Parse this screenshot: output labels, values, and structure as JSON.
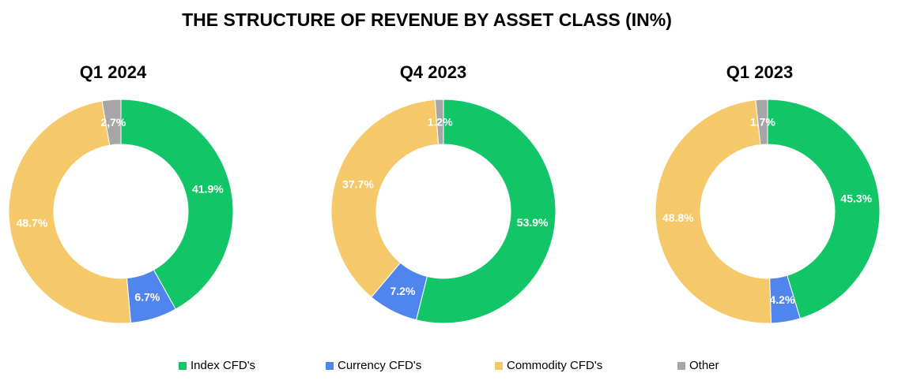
{
  "title": "THE STRUCTURE OF REVENUE BY ASSET CLASS (IN%)",
  "legend": [
    {
      "label": "Index CFD's",
      "color": "#12c667"
    },
    {
      "label": "Currency CFD's",
      "color": "#5185ee"
    },
    {
      "label": "Commodity CFD's",
      "color": "#f5c96a"
    },
    {
      "label": "Other",
      "color": "#a6a6a6"
    }
  ],
  "chart_data": [
    {
      "type": "pie",
      "title": "Q1 2024",
      "categories": [
        "Index CFD's",
        "Currency CFD's",
        "Commodity CFD's",
        "Other"
      ],
      "values": [
        41.9,
        6.7,
        48.7,
        2.7
      ],
      "labels": [
        "41.9%",
        "6.7%",
        "48.7%",
        "2,7%"
      ]
    },
    {
      "type": "pie",
      "title": "Q4 2023",
      "categories": [
        "Index CFD's",
        "Currency CFD's",
        "Commodity CFD's",
        "Other"
      ],
      "values": [
        53.9,
        7.2,
        37.7,
        1.2
      ],
      "labels": [
        "53.9%",
        "7.2%",
        "37.7%",
        "1.2%"
      ]
    },
    {
      "type": "pie",
      "title": "Q1 2023",
      "categories": [
        "Index CFD's",
        "Currency CFD's",
        "Commodity CFD's",
        "Other"
      ],
      "values": [
        45.3,
        4.2,
        48.8,
        1.7
      ],
      "labels": [
        "45.3%",
        "4.2%",
        "48.8%",
        "1,7%"
      ]
    }
  ]
}
